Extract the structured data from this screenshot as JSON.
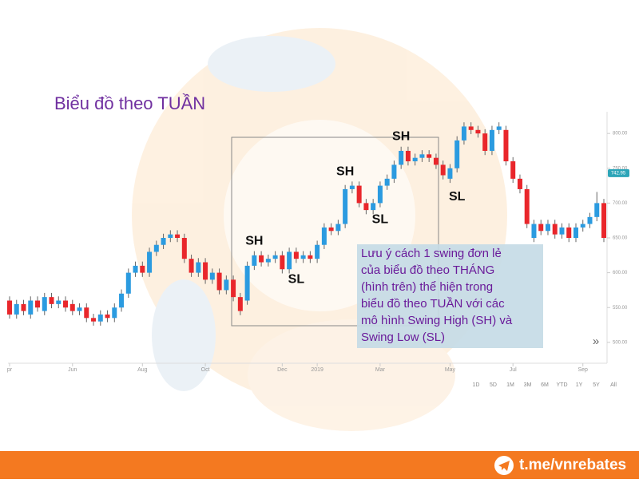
{
  "chart_data": {
    "type": "candlestick",
    "title": "Biểu đồ  theo TUẦN",
    "open": [
      560,
      540,
      555,
      540,
      560,
      545,
      565,
      555,
      560,
      555,
      545,
      550,
      535,
      530,
      540,
      535,
      550,
      570,
      600,
      610,
      600,
      630,
      640,
      650,
      655,
      650,
      620,
      600,
      615,
      590,
      600,
      575,
      590,
      565,
      560,
      610,
      625,
      615,
      620,
      625,
      605,
      630,
      620,
      625,
      620,
      640,
      665,
      660,
      670,
      720,
      725,
      700,
      690,
      700,
      725,
      735,
      755,
      775,
      760,
      765,
      770,
      765,
      755,
      735,
      750,
      790,
      810,
      805,
      800,
      775,
      805,
      805,
      760,
      735,
      720,
      650,
      670,
      660,
      670,
      655,
      665,
      650,
      665,
      670,
      680,
      700
    ],
    "high": [
      566,
      561,
      561,
      566,
      566,
      571,
      571,
      566,
      566,
      561,
      556,
      556,
      541,
      546,
      546,
      556,
      576,
      606,
      616,
      616,
      636,
      646,
      656,
      661,
      661,
      656,
      626,
      621,
      621,
      606,
      606,
      596,
      596,
      571,
      616,
      631,
      631,
      626,
      631,
      631,
      636,
      636,
      631,
      631,
      646,
      671,
      671,
      676,
      726,
      731,
      731,
      706,
      706,
      731,
      741,
      761,
      781,
      781,
      771,
      776,
      776,
      771,
      761,
      756,
      796,
      816,
      816,
      811,
      806,
      811,
      816,
      811,
      766,
      741,
      726,
      676,
      676,
      676,
      676,
      671,
      671,
      671,
      676,
      686,
      716,
      706
    ],
    "low": [
      534,
      534,
      539,
      534,
      544,
      539,
      549,
      549,
      544,
      539,
      539,
      529,
      524,
      524,
      529,
      529,
      544,
      564,
      594,
      594,
      594,
      624,
      634,
      644,
      644,
      614,
      594,
      594,
      584,
      584,
      569,
      569,
      559,
      539,
      554,
      604,
      609,
      609,
      614,
      599,
      599,
      614,
      614,
      614,
      614,
      634,
      654,
      654,
      664,
      714,
      694,
      684,
      684,
      694,
      719,
      729,
      749,
      754,
      754,
      759,
      759,
      749,
      734,
      729,
      744,
      784,
      799,
      794,
      769,
      769,
      799,
      754,
      729,
      714,
      664,
      644,
      654,
      654,
      649,
      649,
      644,
      644,
      659,
      664,
      674,
      644
    ],
    "close": [
      540,
      555,
      545,
      560,
      550,
      565,
      555,
      560,
      550,
      545,
      550,
      535,
      530,
      540,
      535,
      550,
      570,
      600,
      610,
      600,
      630,
      640,
      650,
      655,
      650,
      620,
      600,
      615,
      590,
      600,
      575,
      590,
      565,
      545,
      610,
      625,
      615,
      620,
      625,
      605,
      630,
      620,
      625,
      620,
      640,
      665,
      660,
      670,
      720,
      725,
      700,
      690,
      700,
      725,
      735,
      755,
      775,
      760,
      765,
      770,
      765,
      755,
      740,
      750,
      790,
      810,
      805,
      800,
      775,
      805,
      810,
      760,
      735,
      720,
      670,
      670,
      660,
      670,
      655,
      665,
      650,
      665,
      670,
      680,
      700,
      650
    ],
    "up_color": "#2b9be0",
    "down_color": "#e9262b",
    "xticks": [
      {
        "value": 0,
        "label": "pr"
      },
      {
        "value": 9,
        "label": "Jun"
      },
      {
        "value": 19,
        "label": "Aug"
      },
      {
        "value": 28,
        "label": "Oct"
      },
      {
        "value": 39,
        "label": "Dec"
      },
      {
        "value": 44,
        "label": "2019"
      },
      {
        "value": 53,
        "label": "Mar"
      },
      {
        "value": 63,
        "label": "May"
      },
      {
        "value": 72,
        "label": "Jul"
      },
      {
        "value": 82,
        "label": "Sep"
      }
    ],
    "ylim": [
      470,
      830
    ],
    "yticks": [
      {
        "value": 800,
        "label": "800.00"
      },
      {
        "value": 750,
        "label": "750.00"
      },
      {
        "value": 700,
        "label": "700.00"
      },
      {
        "value": 650,
        "label": "650.00"
      },
      {
        "value": 600,
        "label": "600.00"
      },
      {
        "value": 550,
        "label": "550.00"
      },
      {
        "value": 500,
        "label": "500.00"
      }
    ],
    "current_price": {
      "value": 742.95,
      "label": "742.95"
    },
    "annotations": [
      {
        "text": "SH",
        "index": 35,
        "value": 645
      },
      {
        "text": "SL",
        "index": 41,
        "value": 590
      },
      {
        "text": "SH",
        "index": 48,
        "value": 745
      },
      {
        "text": "SL",
        "index": 53,
        "value": 676
      },
      {
        "text": "SH",
        "index": 56,
        "value": 795
      },
      {
        "text": "SL",
        "index": 64,
        "value": 709
      }
    ],
    "note_lines": [
      "Lưu ý cách 1 swing đơn lẻ",
      "của biểu đồ theo THÁNG",
      "(hình trên) thể hiện trong",
      "biểu đồ theo TUẦN với các",
      "mô hình Swing High (SH) và",
      "Swing Low (SL)"
    ],
    "range_buttons": [
      "1D",
      "5D",
      "1M",
      "3M",
      "6M",
      "YTD",
      "1Y",
      "5Y",
      "All"
    ],
    "scroll_button": "»",
    "footer": "t.me/vnrebates"
  }
}
